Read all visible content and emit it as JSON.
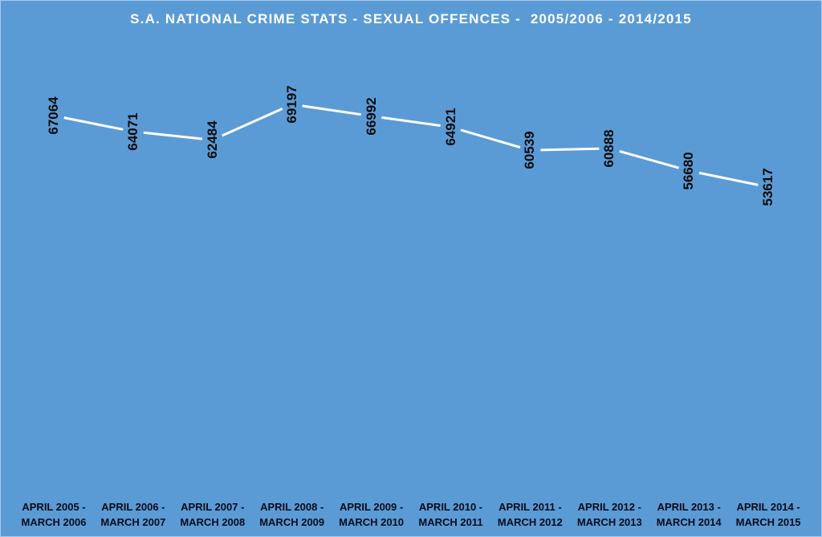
{
  "chart_data": {
    "type": "line",
    "title": "S.A. NATIONAL CRIME STATS - SEXUAL OFFENCES -  2005/2006 - 2014/2015",
    "xlabel": "",
    "ylabel": "",
    "grid": false,
    "legend": null,
    "categories": [
      [
        "APRIL 2005 -",
        "MARCH 2006"
      ],
      [
        "APRIL 2006 -",
        "MARCH 2007"
      ],
      [
        "APRIL 2007 -",
        "MARCH 2008"
      ],
      [
        "APRIL 2008 -",
        "MARCH 2009"
      ],
      [
        "APRIL 2009 -",
        "MARCH 2010"
      ],
      [
        "APRIL 2010 -",
        "MARCH 2011"
      ],
      [
        "APRIL 2011 -",
        "MARCH 2012"
      ],
      [
        "APRIL 2012 -",
        "MARCH 2013"
      ],
      [
        "APRIL 2013 -",
        "MARCH 2014"
      ],
      [
        "APRIL 2014 -",
        "MARCH 2015"
      ]
    ],
    "series": [
      {
        "name": "Sexual Offences",
        "values": [
          67064,
          64071,
          62484,
          69197,
          66992,
          64921,
          60539,
          60888,
          56680,
          53617
        ]
      }
    ],
    "data_labels": true,
    "data_label_rotation": -90,
    "drop_lines": true
  },
  "colors": {
    "background": "#5b9bd5",
    "line": "#ffffff",
    "drop_line": "#ffffff",
    "title_text": "#ffffff",
    "label_text": "#0a0a0a"
  }
}
